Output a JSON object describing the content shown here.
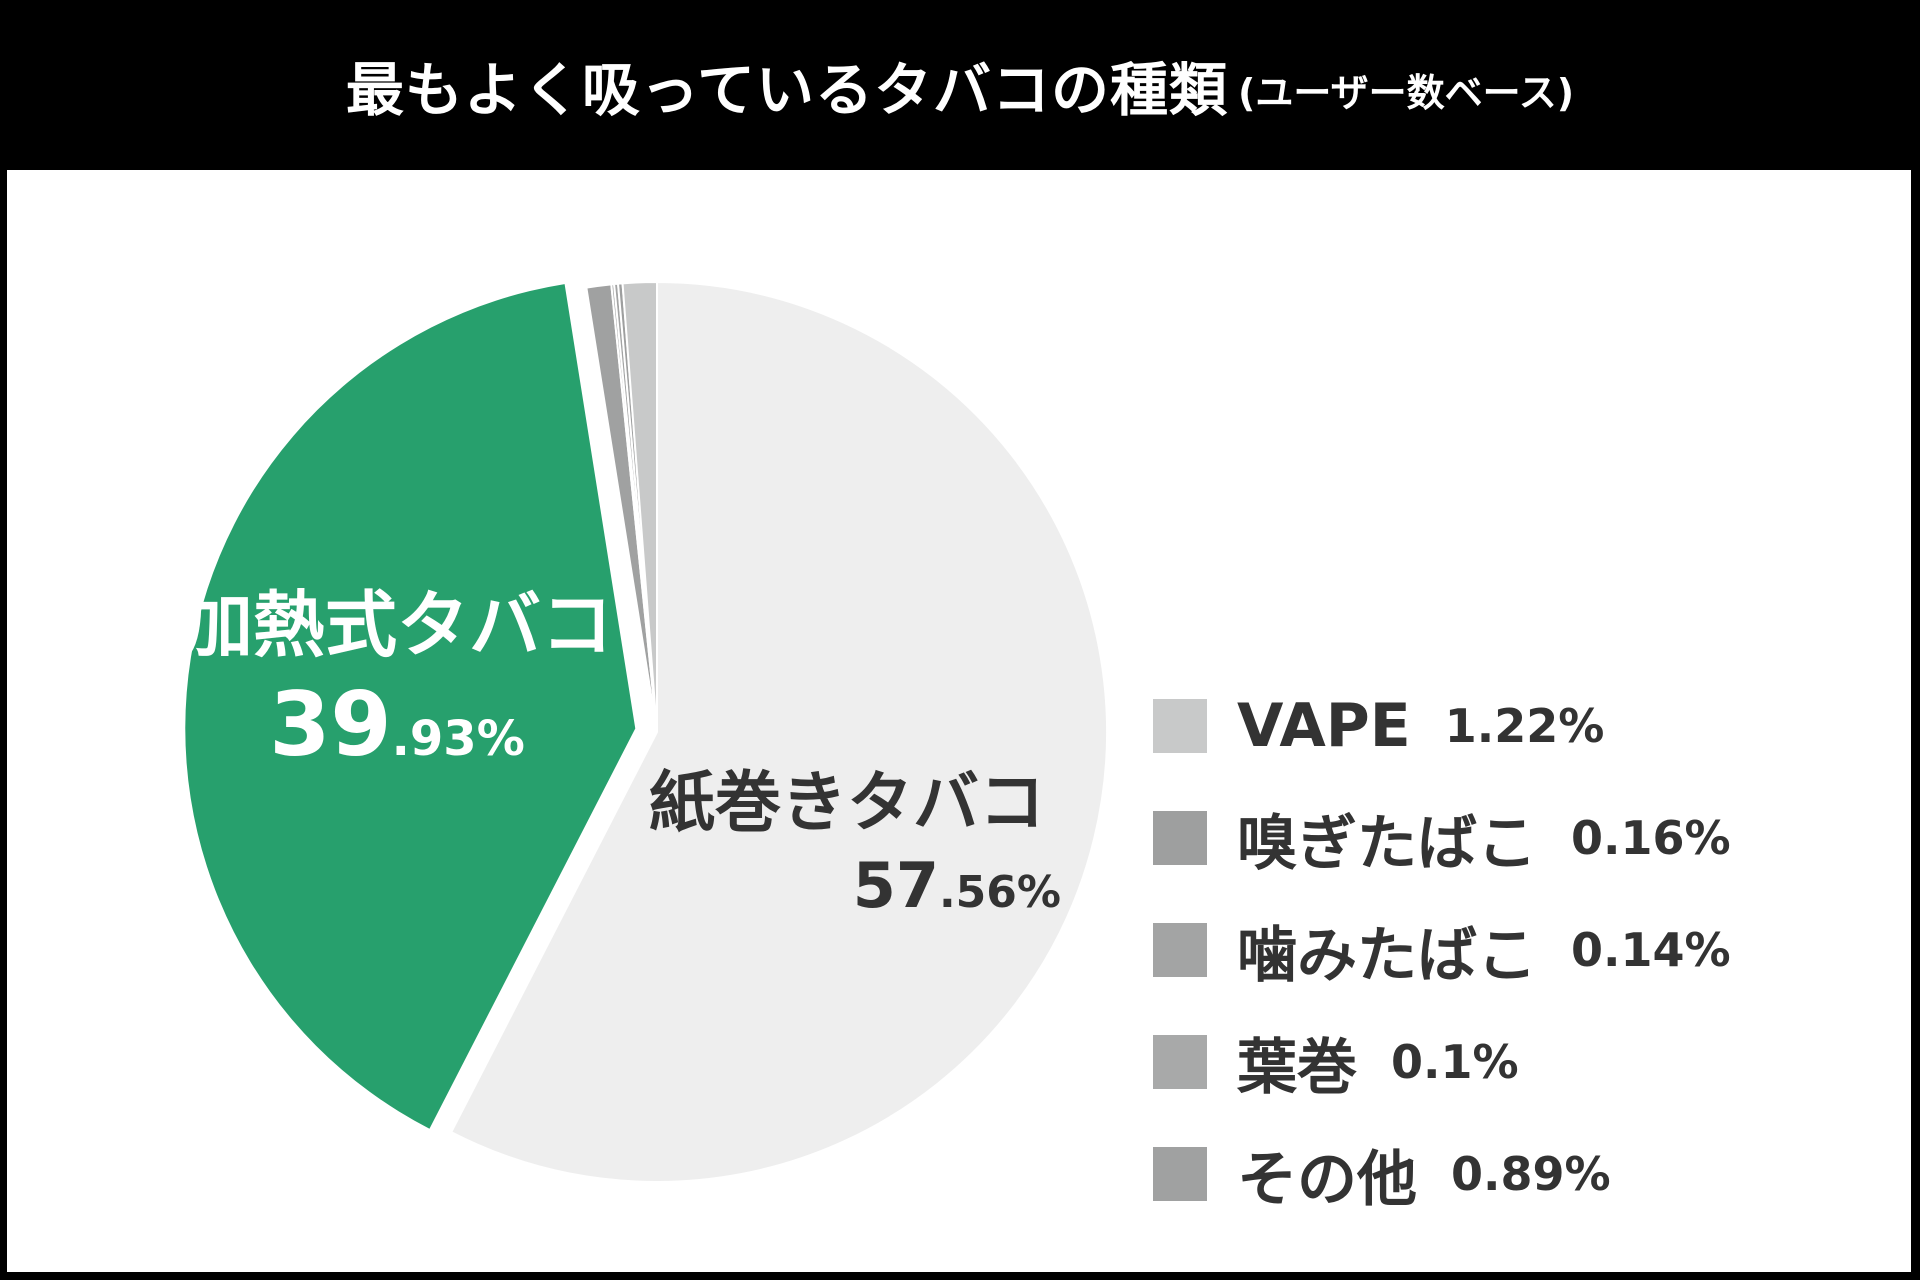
{
  "title": {
    "main": "最もよく吸っているタバコの種類",
    "sub": "(ユーザー数ベース)"
  },
  "chart_data": {
    "type": "pie",
    "title": "最もよく吸っているタバコの種類 (ユーザー数ベース)",
    "slices": [
      {
        "label": "紙巻きタバコ",
        "value": 57.56,
        "display_int": "57",
        "display_dec": ".56%",
        "color": "#eeeeee"
      },
      {
        "label": "加熱式タバコ",
        "value": 39.93,
        "display_int": "39",
        "display_dec": ".93%",
        "color": "#27a06d",
        "exploded": true
      },
      {
        "label": "VAPE",
        "value": 1.22,
        "display": "1.22%",
        "color": "#c8c9c9"
      },
      {
        "label": "嗅ぎたばこ",
        "value": 0.16,
        "display": "0.16%",
        "color": "#9e9f9f"
      },
      {
        "label": "噛みたばこ",
        "value": 0.14,
        "display": "0.14%",
        "color": "#a3a4a4"
      },
      {
        "label": "葉巻",
        "value": 0.1,
        "display": "0.1%",
        "color": "#a8a9a9"
      },
      {
        "label": "その他",
        "value": 0.89,
        "display": "0.89%",
        "color": "#a0a1a1"
      }
    ],
    "legend": [
      {
        "label": "VAPE",
        "pct": "1.22%",
        "color": "#c8c9c9"
      },
      {
        "label": "嗅ぎたばこ",
        "pct": "0.16%",
        "color": "#9e9f9f"
      },
      {
        "label": "噛みたばこ",
        "pct": "0.14%",
        "color": "#a3a4a4"
      },
      {
        "label": "葉巻",
        "pct": "0.1%",
        "color": "#a8a9a9"
      },
      {
        "label": "その他",
        "pct": "0.89%",
        "color": "#a0a1a1"
      }
    ]
  }
}
